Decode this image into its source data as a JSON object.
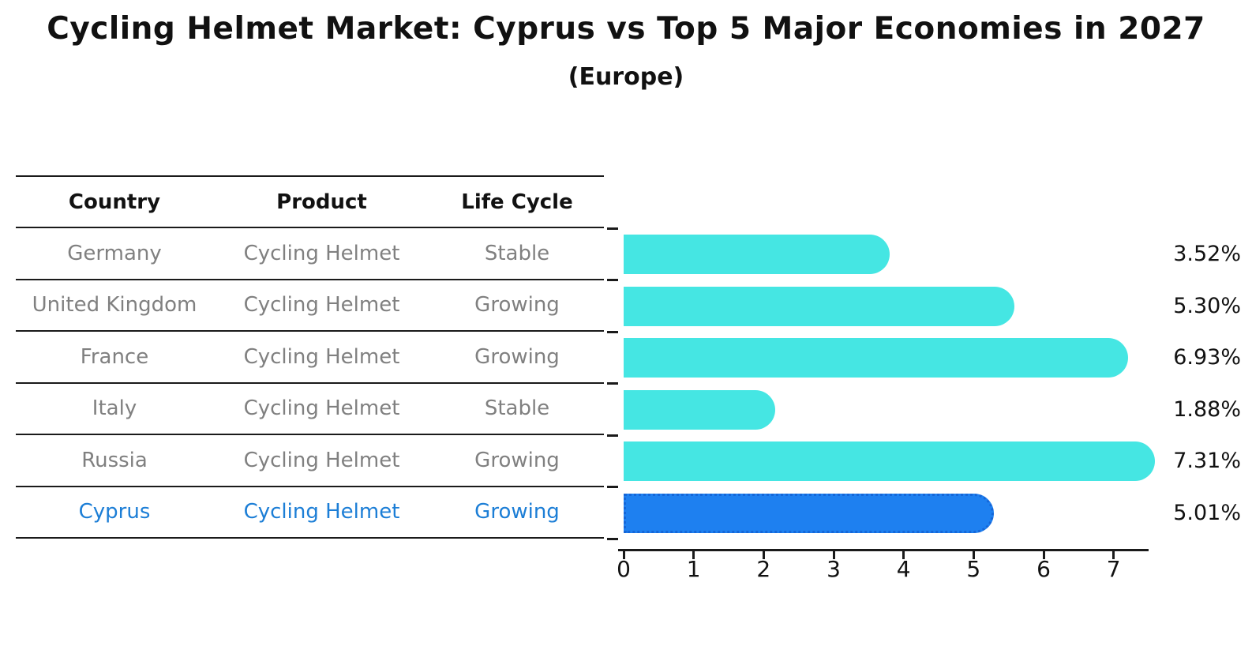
{
  "header": {
    "title": "Cycling Helmet Market: Cyprus vs Top 5 Major Economies in 2027",
    "subtitle": "(Europe)"
  },
  "table": {
    "columns": [
      "Country",
      "Product",
      "Life Cycle"
    ],
    "rows": [
      {
        "country": "Germany",
        "product": "Cycling Helmet",
        "life_cycle": "Stable",
        "value_label": "3.52%"
      },
      {
        "country": "United Kingdom",
        "product": "Cycling Helmet",
        "life_cycle": "Growing",
        "value_label": "5.30%"
      },
      {
        "country": "France",
        "product": "Cycling Helmet",
        "life_cycle": "Growing",
        "value_label": "6.93%"
      },
      {
        "country": "Italy",
        "product": "Cycling Helmet",
        "life_cycle": "Stable",
        "value_label": "1.88%"
      },
      {
        "country": "Russia",
        "product": "Cycling Helmet",
        "life_cycle": "Growing",
        "value_label": "7.31%"
      },
      {
        "country": "Cyprus",
        "product": "Cycling Helmet",
        "life_cycle": "Growing",
        "value_label": "5.01%"
      }
    ]
  },
  "chart_data": {
    "type": "bar",
    "orientation": "horizontal",
    "title": "Cycling Helmet Market: Cyprus vs Top 5 Major Economies in 2027",
    "subtitle": "(Europe)",
    "categories": [
      "Germany",
      "United Kingdom",
      "France",
      "Italy",
      "Russia",
      "Cyprus"
    ],
    "values": [
      3.52,
      5.3,
      6.93,
      1.88,
      7.31,
      5.01
    ],
    "value_labels": [
      "3.52%",
      "5.30%",
      "6.93%",
      "1.88%",
      "7.31%",
      "5.01%"
    ],
    "highlight_index": 5,
    "highlight_category": "Cyprus",
    "xlabel": "",
    "ylabel": "",
    "xlim": [
      0,
      7.5
    ],
    "x_ticks": [
      "0",
      "1",
      "2",
      "3",
      "4",
      "5",
      "6",
      "7"
    ],
    "grid": false,
    "legend": false,
    "bar_color": "#45E6E3",
    "highlight_bar_color": "#1E80F0",
    "highlight_border_color": "#1566D8",
    "highlight_text_color": "#1c7ed6",
    "table_text_color": "#808080",
    "axis_color": "#1a1a1a"
  }
}
